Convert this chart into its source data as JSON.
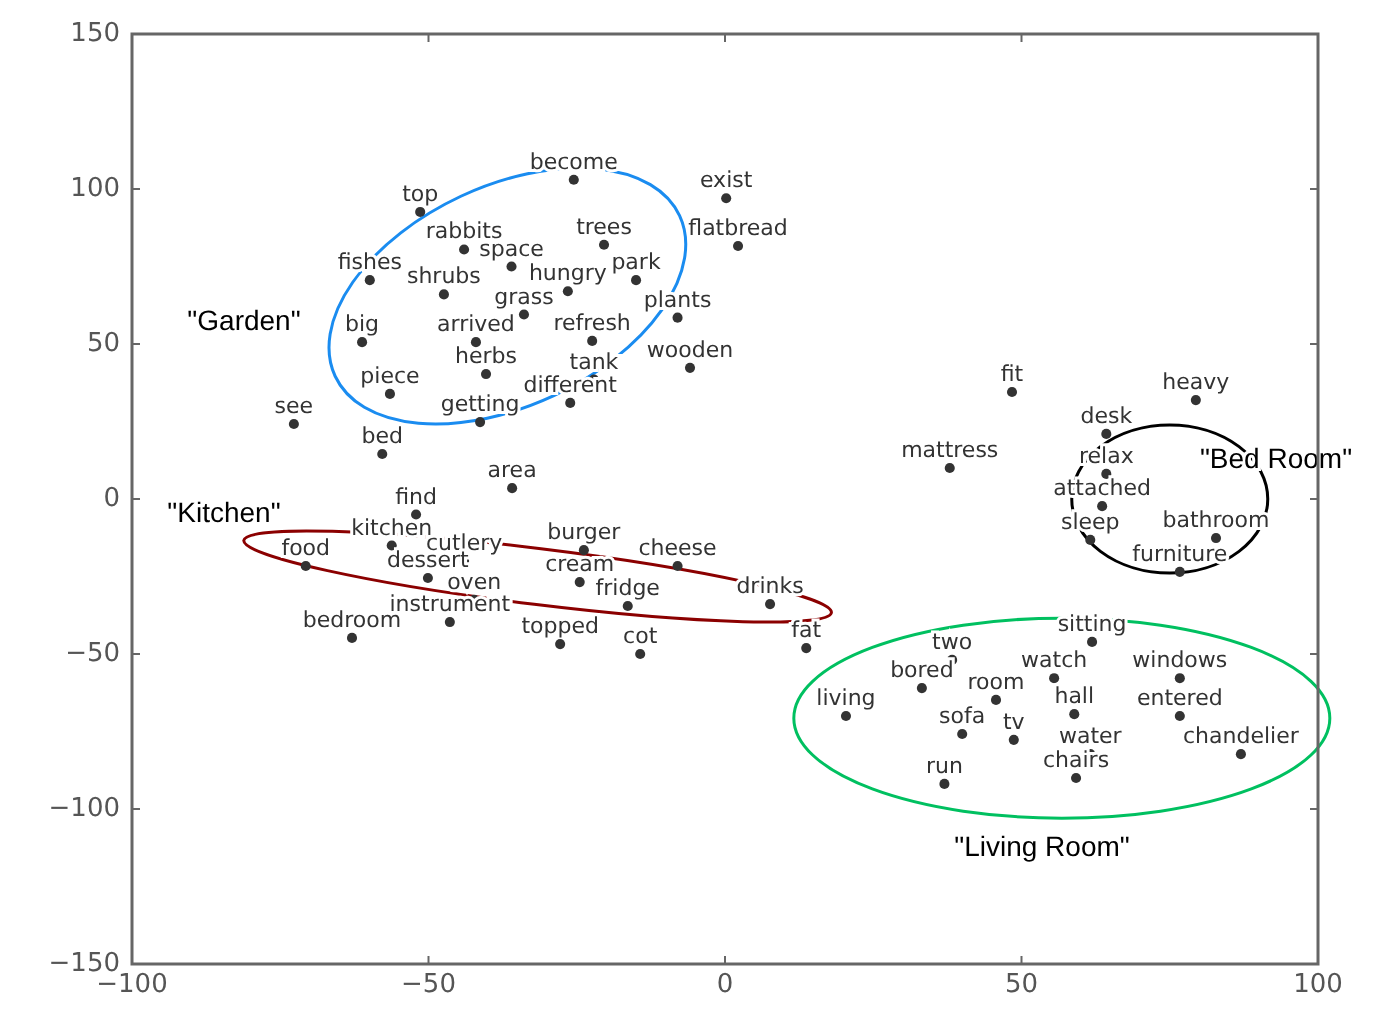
{
  "chart_data": {
    "type": "scatter",
    "marker": "circle",
    "color": "#333333",
    "xlim": [
      -100,
      100
    ],
    "ylim": [
      -150,
      150
    ],
    "xticks": [
      -100,
      -50,
      0,
      50,
      100
    ],
    "yticks": [
      -150,
      -100,
      -50,
      0,
      50,
      100,
      150
    ],
    "grid": false,
    "x": [
      -25.5,
      0.2,
      -51.4,
      -20.4,
      2.2,
      -44,
      -36,
      -59.9,
      -15,
      -47.4,
      -26.5,
      -33.9,
      -8,
      -22.4,
      -61.2,
      -42,
      -5.9,
      -40.3,
      -22.1,
      -56.5,
      -26.1,
      -41.3,
      -72.7,
      -57.8,
      -35.9,
      -52.1,
      -56.2,
      -23.8,
      -70.7,
      -44,
      -8,
      -50.1,
      -24.5,
      -42.3,
      -16.4,
      7.6,
      -46.4,
      -62.9,
      -27.8,
      -14.3,
      13.7,
      48.4,
      79.4,
      64.3,
      37.9,
      64.3,
      63.6,
      61.6,
      82.8,
      76.7,
      61.9,
      38.3,
      55.5,
      76.7,
      33.2,
      45.7,
      58.9,
      76.7,
      20.4,
      40,
      48.7,
      61.6,
      87,
      59.2,
      37
    ],
    "values": [
      103,
      97,
      92.6,
      82,
      81.6,
      80.5,
      75,
      70.6,
      70.6,
      66,
      67,
      59.5,
      58.5,
      51,
      50.6,
      50.6,
      42.3,
      40.3,
      38.5,
      33.9,
      31,
      24.8,
      24.2,
      14.5,
      3.5,
      -5,
      -15,
      -16.5,
      -21.6,
      -20,
      -21.6,
      -25.5,
      -26.8,
      -32.5,
      -34.5,
      -33.9,
      -39.7,
      -44.8,
      -46.8,
      -50,
      -48.1,
      34.5,
      31.9,
      21,
      10,
      8.1,
      -2.3,
      -13.2,
      -12.6,
      -23.5,
      -46.1,
      -51.9,
      -57.8,
      -57.8,
      -61,
      -64.8,
      -69.4,
      -70,
      -70,
      -75.8,
      -77.7,
      -82.3,
      -82.3,
      -90,
      -91.9
    ],
    "value_labels": [
      "become",
      "exist",
      "top",
      "trees",
      "flatbread",
      "rabbits",
      "space",
      "fishes",
      "park",
      "shrubs",
      "hungry",
      "grass",
      "plants",
      "refresh",
      "big",
      "arrived",
      "wooden",
      "herbs",
      "tank",
      "piece",
      "different",
      "getting",
      "see",
      "bed",
      "area",
      "find",
      "kitchen",
      "burger",
      "food",
      "cutlery",
      "cheese",
      "dessert",
      "cream",
      "oven",
      "fridge",
      "drinks",
      "instrument",
      "bedroom",
      "topped",
      "cot",
      "fat",
      "fit",
      "heavy",
      "desk",
      "mattress",
      "relax",
      "attached",
      "sleep",
      "bathroom",
      "furniture",
      "sitting",
      "two",
      "watch",
      "windows",
      "bored",
      "room",
      "hall",
      "entered",
      "living",
      "sofa",
      "tv",
      "water",
      "chandelier",
      "chairs",
      "run"
    ],
    "annotations": [
      "\"Garden\"",
      "\"Kitchen\"",
      "\"Bed Room\"",
      "\"Living Room\""
    ]
  }
}
